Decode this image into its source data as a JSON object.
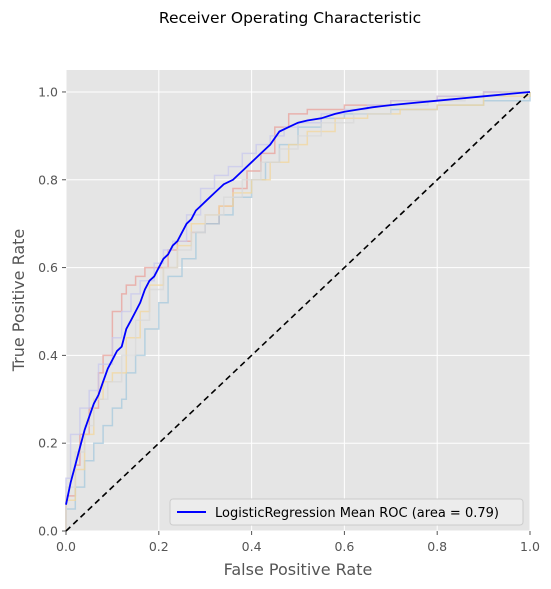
{
  "chart_data": {
    "type": "line",
    "title": "Receiver Operating Characteristic",
    "xlabel": "False Positive Rate",
    "ylabel": "True Positive Rate",
    "xlim": [
      0,
      1
    ],
    "ylim": [
      0,
      1.05
    ],
    "x_ticks": [
      "0.0",
      "0.2",
      "0.4",
      "0.6",
      "0.8",
      "1.0"
    ],
    "y_ticks": [
      "0.0",
      "0.2",
      "0.4",
      "0.6",
      "0.8",
      "1.0"
    ],
    "grid": true,
    "legend_position": "lower-right",
    "series": [
      {
        "name": "LogisticRegression Mean ROC (area = 0.79)",
        "color": "#0000ff",
        "style": "solid",
        "in_legend": true,
        "x": [
          0.0,
          0.01,
          0.02,
          0.03,
          0.04,
          0.05,
          0.06,
          0.07,
          0.08,
          0.09,
          0.1,
          0.11,
          0.12,
          0.13,
          0.14,
          0.15,
          0.16,
          0.17,
          0.18,
          0.19,
          0.2,
          0.21,
          0.22,
          0.23,
          0.24,
          0.25,
          0.26,
          0.27,
          0.28,
          0.29,
          0.3,
          0.32,
          0.34,
          0.36,
          0.38,
          0.4,
          0.42,
          0.44,
          0.46,
          0.48,
          0.5,
          0.52,
          0.55,
          0.58,
          0.6,
          0.63,
          0.66,
          0.7,
          0.75,
          0.8,
          0.85,
          0.9,
          0.95,
          1.0
        ],
        "y": [
          0.06,
          0.11,
          0.15,
          0.19,
          0.23,
          0.26,
          0.29,
          0.31,
          0.34,
          0.37,
          0.39,
          0.41,
          0.42,
          0.46,
          0.48,
          0.5,
          0.52,
          0.55,
          0.57,
          0.58,
          0.6,
          0.62,
          0.63,
          0.65,
          0.66,
          0.68,
          0.7,
          0.71,
          0.73,
          0.74,
          0.75,
          0.77,
          0.79,
          0.8,
          0.82,
          0.84,
          0.86,
          0.88,
          0.91,
          0.92,
          0.93,
          0.935,
          0.94,
          0.95,
          0.955,
          0.96,
          0.965,
          0.97,
          0.975,
          0.98,
          0.985,
          0.99,
          0.995,
          1.0
        ]
      },
      {
        "name": "",
        "color": "#000000",
        "style": "dashed",
        "in_legend": false,
        "x": [
          0,
          1
        ],
        "y": [
          0,
          1
        ]
      },
      {
        "name": "",
        "color": "#e8a09a",
        "style": "faint-step",
        "in_legend": false,
        "x": [
          0.0,
          0.0,
          0.02,
          0.03,
          0.05,
          0.07,
          0.08,
          0.1,
          0.12,
          0.13,
          0.15,
          0.17,
          0.19,
          0.22,
          0.24,
          0.27,
          0.3,
          0.33,
          0.36,
          0.39,
          0.42,
          0.45,
          0.48,
          0.52,
          0.56,
          0.6,
          0.65,
          0.7,
          0.8,
          0.9,
          1.0
        ],
        "y": [
          0.0,
          0.08,
          0.15,
          0.22,
          0.28,
          0.36,
          0.4,
          0.5,
          0.54,
          0.56,
          0.58,
          0.6,
          0.6,
          0.64,
          0.66,
          0.68,
          0.7,
          0.74,
          0.78,
          0.82,
          0.86,
          0.92,
          0.95,
          0.96,
          0.96,
          0.97,
          0.97,
          0.98,
          0.99,
          1.0,
          1.0
        ]
      },
      {
        "name": "",
        "color": "#a6c8dc",
        "style": "faint-step",
        "in_legend": false,
        "x": [
          0.0,
          0.0,
          0.02,
          0.04,
          0.06,
          0.08,
          0.1,
          0.12,
          0.13,
          0.15,
          0.17,
          0.2,
          0.22,
          0.25,
          0.28,
          0.3,
          0.33,
          0.36,
          0.4,
          0.43,
          0.46,
          0.5,
          0.55,
          0.6,
          0.7,
          0.8,
          0.85,
          0.9,
          1.0
        ],
        "y": [
          0.0,
          0.05,
          0.1,
          0.16,
          0.2,
          0.24,
          0.28,
          0.3,
          0.36,
          0.4,
          0.46,
          0.52,
          0.58,
          0.62,
          0.68,
          0.7,
          0.72,
          0.76,
          0.8,
          0.84,
          0.88,
          0.92,
          0.94,
          0.95,
          0.96,
          0.97,
          0.97,
          0.98,
          1.0
        ]
      },
      {
        "name": "",
        "color": "#c8c8ec",
        "style": "faint-step",
        "in_legend": false,
        "x": [
          0.0,
          0.0,
          0.01,
          0.03,
          0.05,
          0.07,
          0.1,
          0.12,
          0.14,
          0.16,
          0.19,
          0.21,
          0.23,
          0.26,
          0.29,
          0.32,
          0.35,
          0.38,
          0.41,
          0.44,
          0.47,
          0.5,
          0.55,
          0.6,
          0.65,
          0.7,
          0.8,
          0.9,
          1.0
        ],
        "y": [
          0.0,
          0.12,
          0.22,
          0.28,
          0.32,
          0.38,
          0.44,
          0.5,
          0.54,
          0.57,
          0.61,
          0.64,
          0.66,
          0.72,
          0.78,
          0.81,
          0.83,
          0.86,
          0.88,
          0.9,
          0.92,
          0.93,
          0.95,
          0.96,
          0.97,
          0.98,
          0.99,
          1.0,
          1.0
        ]
      },
      {
        "name": "",
        "color": "#f2d59c",
        "style": "faint-step",
        "in_legend": false,
        "x": [
          0.0,
          0.0,
          0.02,
          0.04,
          0.06,
          0.08,
          0.1,
          0.13,
          0.16,
          0.18,
          0.21,
          0.24,
          0.27,
          0.3,
          0.33,
          0.36,
          0.4,
          0.44,
          0.48,
          0.52,
          0.58,
          0.65,
          0.72,
          0.8,
          0.9,
          1.0
        ],
        "y": [
          0.0,
          0.07,
          0.14,
          0.22,
          0.3,
          0.34,
          0.36,
          0.44,
          0.5,
          0.56,
          0.6,
          0.65,
          0.7,
          0.72,
          0.74,
          0.77,
          0.8,
          0.84,
          0.88,
          0.91,
          0.94,
          0.95,
          0.96,
          0.97,
          0.99,
          1.0
        ]
      },
      {
        "name": "",
        "color": "#d8d8d8",
        "style": "faint-step",
        "in_legend": false,
        "x": [
          0.0,
          0.0,
          0.02,
          0.04,
          0.06,
          0.09,
          0.12,
          0.15,
          0.18,
          0.21,
          0.24,
          0.27,
          0.3,
          0.34,
          0.38,
          0.42,
          0.46,
          0.5,
          0.55,
          0.62,
          0.7,
          0.78,
          0.86,
          0.94,
          1.0
        ],
        "y": [
          0.0,
          0.1,
          0.18,
          0.24,
          0.3,
          0.34,
          0.4,
          0.48,
          0.55,
          0.6,
          0.64,
          0.68,
          0.72,
          0.76,
          0.8,
          0.84,
          0.87,
          0.9,
          0.93,
          0.95,
          0.97,
          0.98,
          0.99,
          1.0,
          1.0
        ]
      }
    ]
  }
}
